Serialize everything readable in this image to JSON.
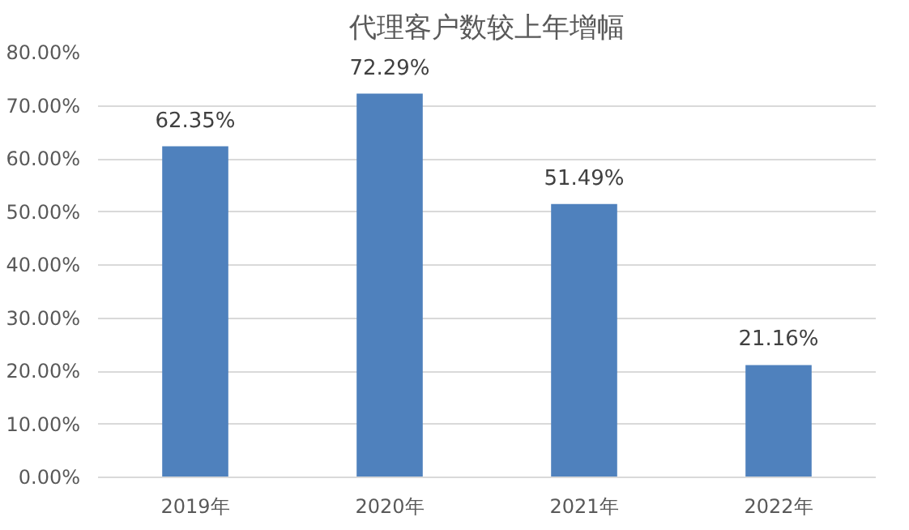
{
  "chart_data": {
    "type": "bar",
    "title": "代理客户数较上年增幅",
    "categories": [
      "2019年",
      "2020年",
      "2021年",
      "2022年"
    ],
    "values": [
      62.35,
      72.29,
      51.49,
      21.16
    ],
    "value_labels": [
      "62.35%",
      "72.29%",
      "51.49%",
      "21.16%"
    ],
    "color": "#4f81bd",
    "ylim": [
      0,
      80
    ],
    "yticks": [
      {
        "value": 0,
        "label": "0.00%"
      },
      {
        "value": 10,
        "label": "10.00%"
      },
      {
        "value": 20,
        "label": "20.00%"
      },
      {
        "value": 30,
        "label": "30.00%"
      },
      {
        "value": 40,
        "label": "40.00%"
      },
      {
        "value": 50,
        "label": "50.00%"
      },
      {
        "value": 60,
        "label": "60.00%"
      },
      {
        "value": 70,
        "label": "70.00%"
      },
      {
        "value": 80,
        "label": "80.00%"
      }
    ],
    "grid": "y"
  }
}
